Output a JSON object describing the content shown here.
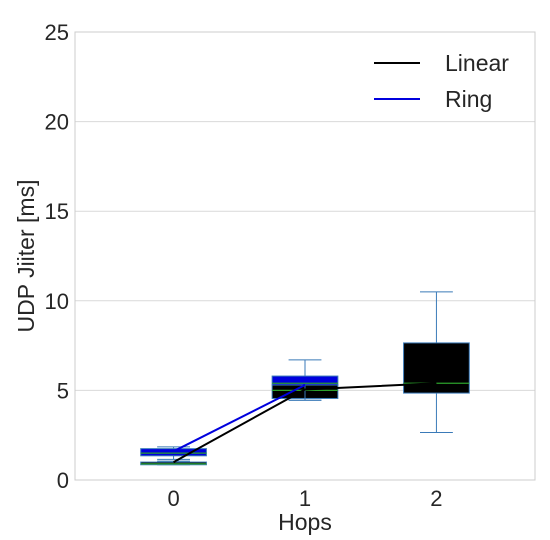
{
  "chart_data": {
    "type": "box",
    "title": "",
    "xlabel": "Hops",
    "ylabel": "UDP Jiiter [ms]",
    "categories": [
      "0",
      "1",
      "2"
    ],
    "x": [
      0,
      1,
      2
    ],
    "xlim": [
      -0.75,
      2.75
    ],
    "ylim": [
      0,
      25
    ],
    "yticks": [
      0,
      5,
      10,
      15,
      20,
      25
    ],
    "grid": "horizontal",
    "legend_position": "top-right",
    "series": [
      {
        "name": "Linear",
        "color": "#000000",
        "line": [
          1.0,
          5.05,
          5.4
        ],
        "boxes": [
          {
            "x": 0,
            "whislo": 0.85,
            "q1": 0.85,
            "median": 0.9,
            "q3": 1.0,
            "whishi": 1.05
          },
          {
            "x": 1,
            "whislo": 4.45,
            "q1": 4.55,
            "median": 5.0,
            "q3": 5.3,
            "whishi": 5.55
          },
          {
            "x": 2,
            "whislo": 2.65,
            "q1": 4.85,
            "median": 5.4,
            "q3": 7.65,
            "whishi": 10.5
          }
        ]
      },
      {
        "name": "Ring",
        "color": "#0000dd",
        "line": [
          1.6,
          5.3
        ],
        "boxes": [
          {
            "x": 0,
            "whislo": 1.15,
            "q1": 1.35,
            "median": 1.5,
            "q3": 1.75,
            "whishi": 1.85
          },
          {
            "x": 1,
            "whislo": 4.45,
            "q1": 5.3,
            "median": 5.4,
            "q3": 5.8,
            "whishi": 6.7
          }
        ]
      }
    ],
    "box_edge_color": "#3a7ab8",
    "median_color": "#2ca02c"
  }
}
